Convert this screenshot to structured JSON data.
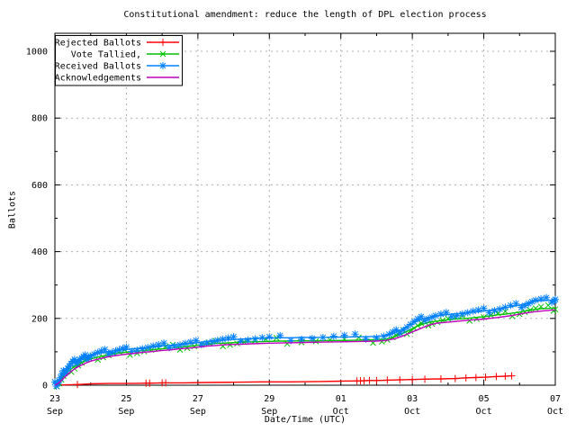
{
  "chart_data": {
    "type": "line",
    "title": "Constitutional amendment: reduce the length of DPL election process",
    "xlabel": "Date/Time (UTC)",
    "ylabel": "Ballots",
    "x_axis": {
      "unit": "days since 23 Sep 00:00 UTC",
      "range": [
        0,
        14
      ],
      "major_ticks": [
        {
          "pos": 0,
          "day": "23",
          "month": "Sep"
        },
        {
          "pos": 2,
          "day": "25",
          "month": "Sep"
        },
        {
          "pos": 4,
          "day": "27",
          "month": "Sep"
        },
        {
          "pos": 6,
          "day": "29",
          "month": "Sep"
        },
        {
          "pos": 8,
          "day": "01",
          "month": "Oct"
        },
        {
          "pos": 10,
          "day": "03",
          "month": "Oct"
        },
        {
          "pos": 12,
          "day": "05",
          "month": "Oct"
        },
        {
          "pos": 14,
          "day": "07",
          "month": "Oct"
        }
      ],
      "minor_tick_positions": [
        1,
        3,
        5,
        7,
        9,
        11,
        13
      ]
    },
    "y_axis": {
      "range": [
        0,
        1054
      ],
      "major_ticks": [
        0,
        200,
        400,
        600,
        800,
        1000
      ],
      "minor_tick_positions": [
        100,
        300,
        500,
        700,
        900
      ]
    },
    "grid": {
      "on": true,
      "color": "#b0b0b0",
      "x_positions": [
        2,
        4,
        6,
        8,
        10,
        12
      ],
      "y_positions": [
        200,
        400,
        600,
        800,
        1000
      ]
    },
    "legend": {
      "position": "top-left",
      "border": true
    },
    "series": [
      {
        "name": "Rejected Ballots",
        "color": "#ff0000",
        "marker": "plus",
        "points": [
          [
            0,
            0
          ],
          [
            0.3,
            1
          ],
          [
            0.63,
            2
          ],
          [
            1,
            4
          ],
          [
            1.5,
            5
          ],
          [
            2,
            5
          ],
          [
            2.6,
            6
          ],
          [
            3.05,
            7
          ],
          [
            3.6,
            7
          ],
          [
            4.2,
            8
          ],
          [
            5,
            9
          ],
          [
            5.8,
            10
          ],
          [
            6.6,
            10
          ],
          [
            7.4,
            11
          ],
          [
            8,
            12
          ],
          [
            8.5,
            13
          ],
          [
            8.75,
            14
          ],
          [
            9,
            14
          ],
          [
            9.3,
            15
          ],
          [
            9.6,
            16
          ],
          [
            10,
            17
          ],
          [
            10.3,
            18
          ],
          [
            10.8,
            19
          ],
          [
            11.2,
            20
          ],
          [
            11.5,
            22
          ],
          [
            11.75,
            23
          ],
          [
            12.05,
            24
          ],
          [
            12.35,
            26
          ],
          [
            12.6,
            27
          ],
          [
            12.78,
            28
          ]
        ],
        "marker_points": [
          [
            0.63,
            2
          ],
          [
            2.55,
            6
          ],
          [
            2.65,
            6
          ],
          [
            3.0,
            7
          ],
          [
            3.1,
            7
          ],
          [
            8.45,
            13
          ],
          [
            8.55,
            13
          ],
          [
            8.65,
            13
          ],
          [
            8.8,
            14
          ],
          [
            9.0,
            14
          ],
          [
            9.3,
            15
          ],
          [
            9.65,
            16
          ],
          [
            10.0,
            17
          ],
          [
            10.35,
            18
          ],
          [
            10.8,
            19
          ],
          [
            11.2,
            20
          ],
          [
            11.5,
            22
          ],
          [
            11.78,
            23
          ],
          [
            12.05,
            24
          ],
          [
            12.35,
            26
          ],
          [
            12.6,
            27
          ],
          [
            12.78,
            28
          ]
        ]
      },
      {
        "name": "Vote Tallied,",
        "color": "#00c000",
        "marker": "cross",
        "markers": "all",
        "marker_jitter": 3.5,
        "points": [
          [
            0,
            0
          ],
          [
            0.06,
            4
          ],
          [
            0.12,
            10
          ],
          [
            0.18,
            18
          ],
          [
            0.24,
            26
          ],
          [
            0.3,
            34
          ],
          [
            0.38,
            42
          ],
          [
            0.46,
            49
          ],
          [
            0.55,
            56
          ],
          [
            0.65,
            62
          ],
          [
            0.75,
            67
          ],
          [
            0.85,
            72
          ],
          [
            0.95,
            76
          ],
          [
            1.05,
            80
          ],
          [
            1.2,
            84
          ],
          [
            1.35,
            88
          ],
          [
            1.5,
            91
          ],
          [
            1.65,
            94
          ],
          [
            1.8,
            96
          ],
          [
            1.95,
            98
          ],
          [
            2.1,
            100
          ],
          [
            2.3,
            102
          ],
          [
            2.5,
            104
          ],
          [
            2.7,
            106
          ],
          [
            2.9,
            108
          ],
          [
            3.1,
            110
          ],
          [
            3.3,
            112
          ],
          [
            3.5,
            114
          ],
          [
            3.7,
            116
          ],
          [
            3.9,
            118
          ],
          [
            4.1,
            121
          ],
          [
            4.3,
            123
          ],
          [
            4.5,
            125
          ],
          [
            4.7,
            126
          ],
          [
            4.9,
            127
          ],
          [
            5.1,
            128
          ],
          [
            5.3,
            129
          ],
          [
            5.6,
            130
          ],
          [
            5.9,
            131
          ],
          [
            6.2,
            132
          ],
          [
            6.5,
            132
          ],
          [
            6.9,
            133
          ],
          [
            7.3,
            133
          ],
          [
            7.7,
            134
          ],
          [
            8.1,
            134
          ],
          [
            8.5,
            135
          ],
          [
            8.9,
            136
          ],
          [
            9.15,
            137
          ],
          [
            9.3,
            139
          ],
          [
            9.45,
            143
          ],
          [
            9.55,
            147
          ],
          [
            9.65,
            151
          ],
          [
            9.75,
            156
          ],
          [
            9.85,
            161
          ],
          [
            9.95,
            167
          ],
          [
            10.05,
            172
          ],
          [
            10.15,
            177
          ],
          [
            10.25,
            181
          ],
          [
            10.35,
            185
          ],
          [
            10.45,
            188
          ],
          [
            10.55,
            190
          ],
          [
            10.7,
            192
          ],
          [
            10.85,
            194
          ],
          [
            11,
            196
          ],
          [
            11.2,
            198
          ],
          [
            11.4,
            199
          ],
          [
            11.6,
            201
          ],
          [
            11.8,
            203
          ],
          [
            12,
            205
          ],
          [
            12.2,
            208
          ],
          [
            12.4,
            211
          ],
          [
            12.6,
            213
          ],
          [
            12.8,
            216
          ],
          [
            13,
            219
          ],
          [
            13.15,
            222
          ],
          [
            13.3,
            225
          ],
          [
            13.45,
            227
          ],
          [
            13.6,
            229
          ],
          [
            13.8,
            230
          ],
          [
            13.95,
            231
          ],
          [
            14,
            232
          ]
        ]
      },
      {
        "name": "Received Ballots",
        "color": "#0080ff",
        "marker": "star",
        "markers": "all",
        "marker_jitter": 3,
        "points": [
          [
            0,
            1
          ],
          [
            0.04,
            4
          ],
          [
            0.08,
            9
          ],
          [
            0.12,
            15
          ],
          [
            0.16,
            22
          ],
          [
            0.2,
            30
          ],
          [
            0.24,
            37
          ],
          [
            0.28,
            43
          ],
          [
            0.32,
            48
          ],
          [
            0.36,
            53
          ],
          [
            0.4,
            57
          ],
          [
            0.45,
            62
          ],
          [
            0.5,
            66
          ],
          [
            0.55,
            69
          ],
          [
            0.6,
            72
          ],
          [
            0.65,
            75
          ],
          [
            0.7,
            78
          ],
          [
            0.75,
            80
          ],
          [
            0.8,
            82
          ],
          [
            0.85,
            84
          ],
          [
            0.9,
            86
          ],
          [
            0.95,
            88
          ],
          [
            1,
            90
          ],
          [
            1.1,
            93
          ],
          [
            1.2,
            95
          ],
          [
            1.3,
            97
          ],
          [
            1.4,
            99
          ],
          [
            1.5,
            101
          ],
          [
            1.6,
            102
          ],
          [
            1.7,
            104
          ],
          [
            1.8,
            105
          ],
          [
            1.9,
            106
          ],
          [
            2,
            107
          ],
          [
            2.15,
            109
          ],
          [
            2.3,
            110
          ],
          [
            2.45,
            112
          ],
          [
            2.6,
            113
          ],
          [
            2.75,
            115
          ],
          [
            2.9,
            116
          ],
          [
            3.05,
            118
          ],
          [
            3.2,
            119
          ],
          [
            3.35,
            121
          ],
          [
            3.5,
            122
          ],
          [
            3.65,
            124
          ],
          [
            3.8,
            125
          ],
          [
            3.95,
            127
          ],
          [
            4.1,
            129
          ],
          [
            4.25,
            131
          ],
          [
            4.4,
            133
          ],
          [
            4.55,
            134
          ],
          [
            4.7,
            135
          ],
          [
            4.85,
            136
          ],
          [
            5,
            137
          ],
          [
            5.2,
            138
          ],
          [
            5.4,
            139
          ],
          [
            5.6,
            140
          ],
          [
            5.8,
            141
          ],
          [
            6,
            141
          ],
          [
            6.3,
            142
          ],
          [
            6.6,
            142
          ],
          [
            6.9,
            143
          ],
          [
            7.2,
            143
          ],
          [
            7.5,
            143
          ],
          [
            7.8,
            144
          ],
          [
            8.1,
            144
          ],
          [
            8.4,
            145
          ],
          [
            8.7,
            145
          ],
          [
            9,
            146
          ],
          [
            9.2,
            148
          ],
          [
            9.35,
            151
          ],
          [
            9.45,
            155
          ],
          [
            9.55,
            159
          ],
          [
            9.65,
            164
          ],
          [
            9.75,
            170
          ],
          [
            9.85,
            176
          ],
          [
            9.95,
            182
          ],
          [
            10.05,
            188
          ],
          [
            10.15,
            193
          ],
          [
            10.25,
            197
          ],
          [
            10.35,
            200
          ],
          [
            10.45,
            203
          ],
          [
            10.55,
            205
          ],
          [
            10.65,
            207
          ],
          [
            10.8,
            209
          ],
          [
            10.95,
            211
          ],
          [
            11.1,
            213
          ],
          [
            11.25,
            214
          ],
          [
            11.4,
            216
          ],
          [
            11.55,
            217
          ],
          [
            11.7,
            219
          ],
          [
            11.85,
            220
          ],
          [
            12,
            222
          ],
          [
            12.15,
            224
          ],
          [
            12.3,
            227
          ],
          [
            12.45,
            229
          ],
          [
            12.6,
            232
          ],
          [
            12.75,
            235
          ],
          [
            12.9,
            238
          ],
          [
            13.05,
            241
          ],
          [
            13.15,
            244
          ],
          [
            13.25,
            247
          ],
          [
            13.35,
            250
          ],
          [
            13.45,
            252
          ],
          [
            13.6,
            253
          ],
          [
            13.75,
            254
          ],
          [
            13.9,
            255
          ],
          [
            13.97,
            257
          ],
          [
            14,
            258
          ]
        ]
      },
      {
        "name": "Acknowledgements",
        "color": "#c000c0",
        "marker": "none",
        "points": [
          [
            0,
            0
          ],
          [
            0.1,
            6
          ],
          [
            0.2,
            16
          ],
          [
            0.3,
            27
          ],
          [
            0.4,
            37
          ],
          [
            0.5,
            45
          ],
          [
            0.6,
            52
          ],
          [
            0.7,
            58
          ],
          [
            0.8,
            63
          ],
          [
            0.9,
            68
          ],
          [
            1,
            72
          ],
          [
            1.2,
            78
          ],
          [
            1.4,
            83
          ],
          [
            1.6,
            87
          ],
          [
            1.8,
            90
          ],
          [
            2,
            93
          ],
          [
            2.25,
            96
          ],
          [
            2.5,
            99
          ],
          [
            2.75,
            101
          ],
          [
            3,
            104
          ],
          [
            3.25,
            106
          ],
          [
            3.5,
            109
          ],
          [
            3.75,
            111
          ],
          [
            4,
            114
          ],
          [
            4.25,
            117
          ],
          [
            4.5,
            119
          ],
          [
            4.75,
            121
          ],
          [
            5,
            122
          ],
          [
            5.25,
            123
          ],
          [
            5.5,
            124
          ],
          [
            6,
            126
          ],
          [
            6.5,
            127
          ],
          [
            7,
            128
          ],
          [
            7.5,
            129
          ],
          [
            8,
            130
          ],
          [
            8.5,
            131
          ],
          [
            9,
            132
          ],
          [
            9.25,
            134
          ],
          [
            9.5,
            139
          ],
          [
            9.7,
            146
          ],
          [
            9.9,
            155
          ],
          [
            10.1,
            164
          ],
          [
            10.3,
            173
          ],
          [
            10.5,
            181
          ],
          [
            10.7,
            186
          ],
          [
            11,
            189
          ],
          [
            11.3,
            192
          ],
          [
            11.6,
            195
          ],
          [
            12,
            198
          ],
          [
            12.4,
            203
          ],
          [
            12.8,
            209
          ],
          [
            13.1,
            215
          ],
          [
            13.4,
            220
          ],
          [
            13.7,
            223
          ],
          [
            14,
            226
          ]
        ]
      }
    ]
  }
}
